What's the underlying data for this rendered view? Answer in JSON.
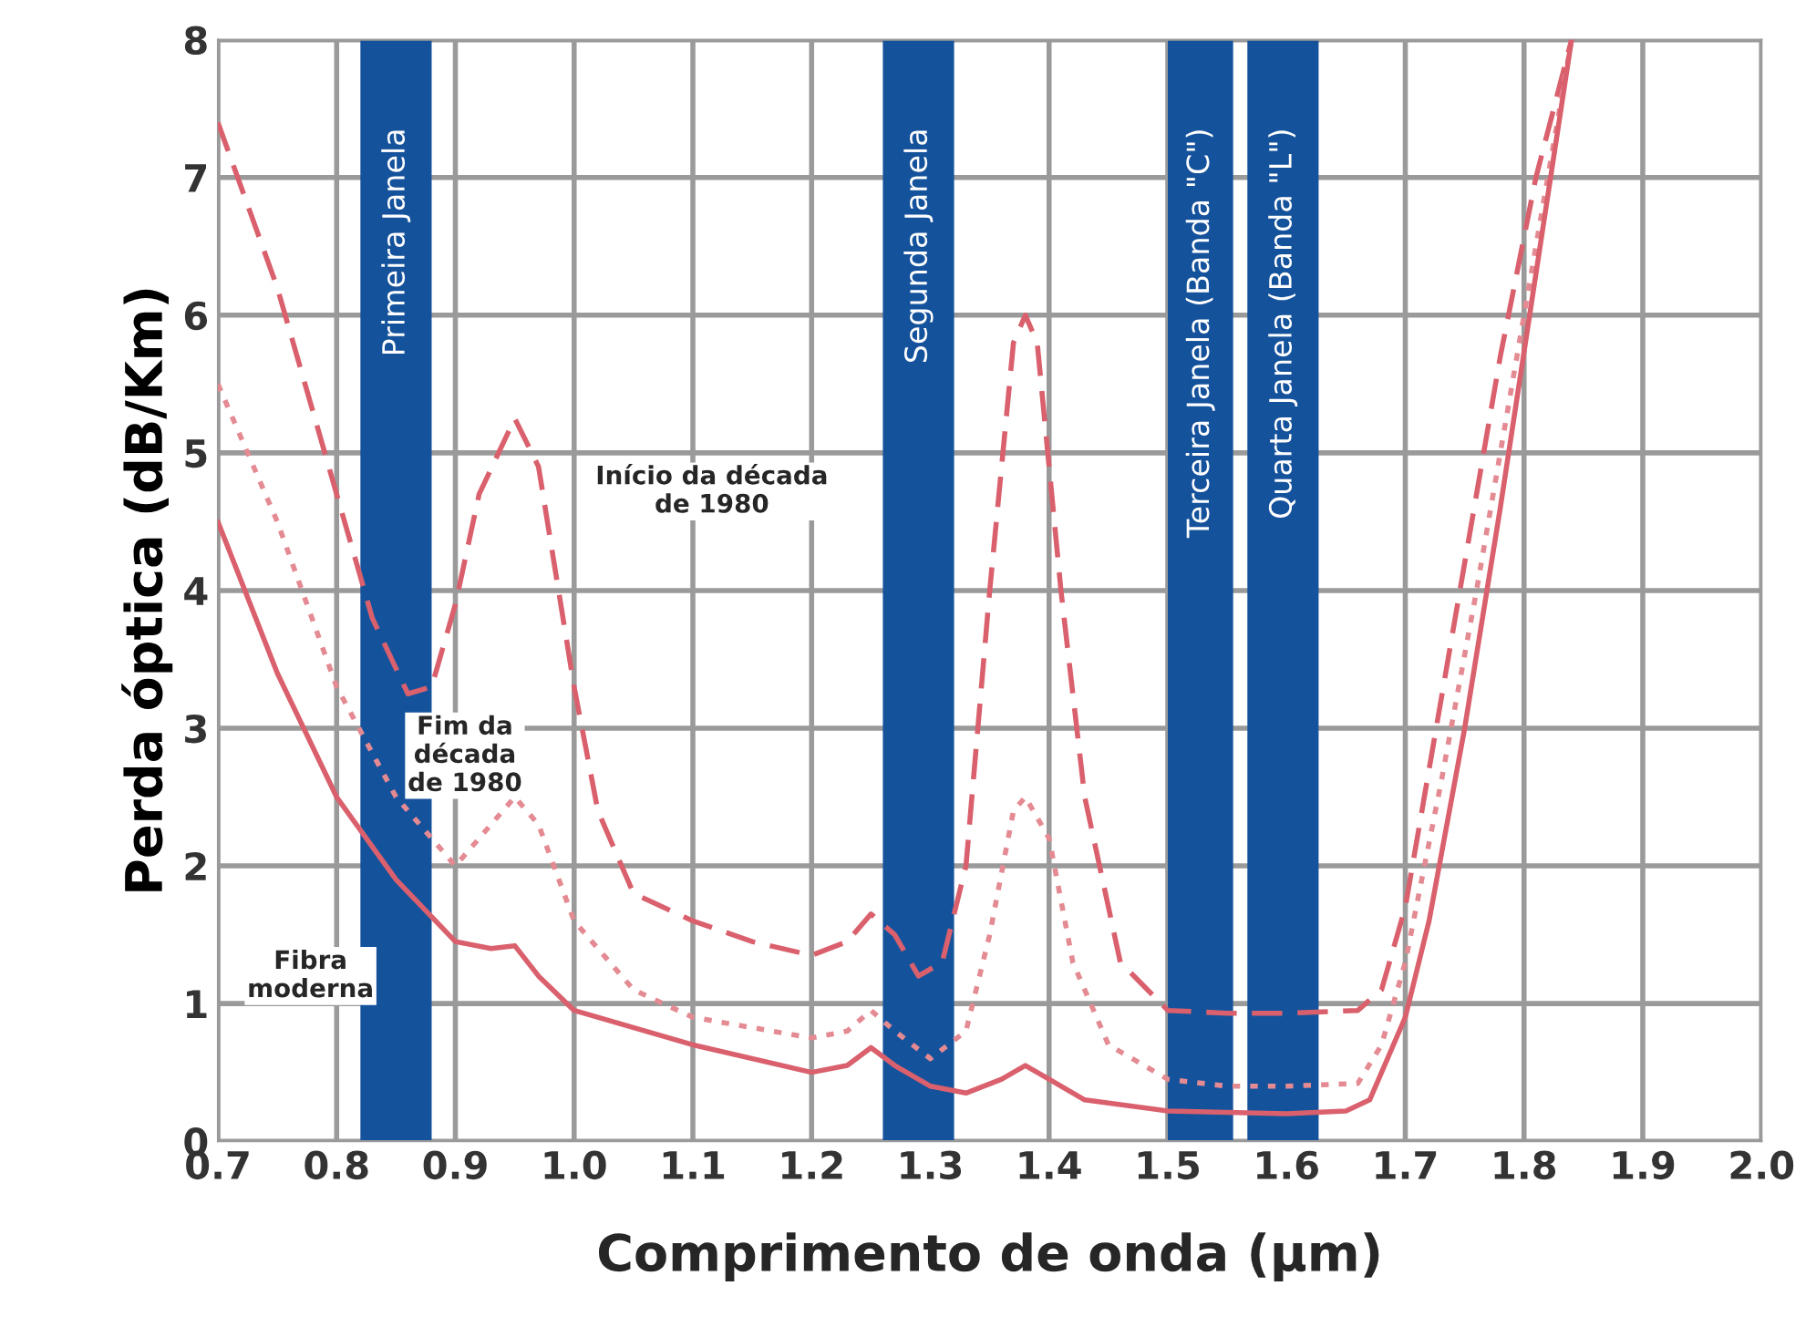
{
  "chart_data": {
    "type": "line",
    "xlabel": "Comprimento de onda (µm)",
    "ylabel": "Perda óptica (dB/Km)",
    "xlim": [
      0.7,
      2.0
    ],
    "xticks": [
      {
        "value": 0.7,
        "label": "0.7"
      },
      {
        "value": 0.8,
        "label": "0.8"
      },
      {
        "value": 0.9,
        "label": "0.9"
      },
      {
        "value": 1.0,
        "label": "1.0"
      },
      {
        "value": 1.1,
        "label": "1.1"
      },
      {
        "value": 1.2,
        "label": "1.2"
      },
      {
        "value": 1.3,
        "label": "1.3"
      },
      {
        "value": 1.4,
        "label": "1.4"
      },
      {
        "value": 1.5,
        "label": "1.5"
      },
      {
        "value": 1.6,
        "label": "1.6"
      },
      {
        "value": 1.7,
        "label": "1.7"
      },
      {
        "value": 1.8,
        "label": "1.8"
      },
      {
        "value": 1.9,
        "label": "1.9"
      },
      {
        "value": 2.0,
        "label": "2.0"
      }
    ],
    "ylim": [
      0,
      8
    ],
    "yticks": [
      0,
      1,
      2,
      3,
      4,
      5,
      6,
      7,
      8
    ],
    "grid": true,
    "marker": "none",
    "series": [
      {
        "color": "#d9606c",
        "line_style": "dashed",
        "x": [
          0.7,
          0.75,
          0.8,
          0.83,
          0.86,
          0.88,
          0.9,
          0.92,
          0.95,
          0.97,
          1.0,
          1.02,
          1.05,
          1.1,
          1.15,
          1.2,
          1.23,
          1.25,
          1.27,
          1.29,
          1.31,
          1.33,
          1.35,
          1.37,
          1.38,
          1.39,
          1.41,
          1.43,
          1.46,
          1.5,
          1.55,
          1.6,
          1.66,
          1.68,
          1.7,
          1.72,
          1.75,
          1.78,
          1.81,
          1.84
        ],
        "values": [
          7.4,
          6.2,
          4.7,
          3.8,
          3.25,
          3.3,
          3.9,
          4.7,
          5.25,
          4.9,
          3.3,
          2.4,
          1.8,
          1.6,
          1.45,
          1.35,
          1.45,
          1.65,
          1.5,
          1.2,
          1.3,
          2.0,
          4.0,
          5.8,
          6.0,
          5.8,
          4.0,
          2.5,
          1.3,
          0.95,
          0.93,
          0.93,
          0.95,
          1.1,
          1.7,
          2.7,
          4.2,
          5.7,
          7.0,
          8.0
        ]
      },
      {
        "color": "#e48a92",
        "line_style": "dotted",
        "x": [
          0.7,
          0.75,
          0.8,
          0.85,
          0.9,
          0.93,
          0.95,
          0.97,
          1.0,
          1.05,
          1.1,
          1.2,
          1.23,
          1.25,
          1.27,
          1.3,
          1.33,
          1.35,
          1.37,
          1.38,
          1.4,
          1.42,
          1.45,
          1.5,
          1.55,
          1.6,
          1.66,
          1.68,
          1.7,
          1.73,
          1.76,
          1.8,
          1.84
        ],
        "values": [
          5.5,
          4.5,
          3.3,
          2.5,
          2.0,
          2.3,
          2.5,
          2.3,
          1.6,
          1.1,
          0.9,
          0.75,
          0.8,
          0.95,
          0.8,
          0.6,
          0.8,
          1.5,
          2.4,
          2.5,
          2.2,
          1.3,
          0.7,
          0.45,
          0.4,
          0.4,
          0.42,
          0.7,
          1.3,
          2.6,
          4.0,
          6.0,
          8.0
        ]
      },
      {
        "color": "#d9606c",
        "line_style": "solid",
        "x": [
          0.7,
          0.75,
          0.8,
          0.85,
          0.9,
          0.93,
          0.95,
          0.97,
          1.0,
          1.1,
          1.2,
          1.23,
          1.25,
          1.27,
          1.3,
          1.33,
          1.36,
          1.38,
          1.4,
          1.43,
          1.5,
          1.6,
          1.65,
          1.67,
          1.7,
          1.72,
          1.75,
          1.78,
          1.81,
          1.84
        ],
        "values": [
          4.5,
          3.4,
          2.5,
          1.9,
          1.45,
          1.4,
          1.42,
          1.2,
          0.95,
          0.7,
          0.5,
          0.55,
          0.68,
          0.55,
          0.4,
          0.35,
          0.45,
          0.55,
          0.45,
          0.3,
          0.22,
          0.2,
          0.22,
          0.3,
          0.9,
          1.6,
          3.0,
          4.6,
          6.3,
          8.0
        ]
      }
    ],
    "bands": [
      {
        "axis": "x",
        "from": 0.82,
        "to": 0.88,
        "label": "Primeira Janela",
        "color": "#15529c"
      },
      {
        "axis": "x",
        "from": 1.26,
        "to": 1.32,
        "label": "Segunda Janela",
        "color": "#15529c"
      },
      {
        "axis": "x",
        "from": 1.5,
        "to": 1.555,
        "label": "Terceira Janela (Banda \"C\")",
        "color": "#15529c"
      },
      {
        "axis": "x",
        "from": 1.567,
        "to": 1.627,
        "label": "Quarta Janela (Banda \"L\")",
        "color": "#15529c"
      }
    ],
    "annotations": [
      "Início da década\nde 1980",
      "Fim da\ndécada\nde 1980",
      "Fibra\nmoderna"
    ]
  }
}
